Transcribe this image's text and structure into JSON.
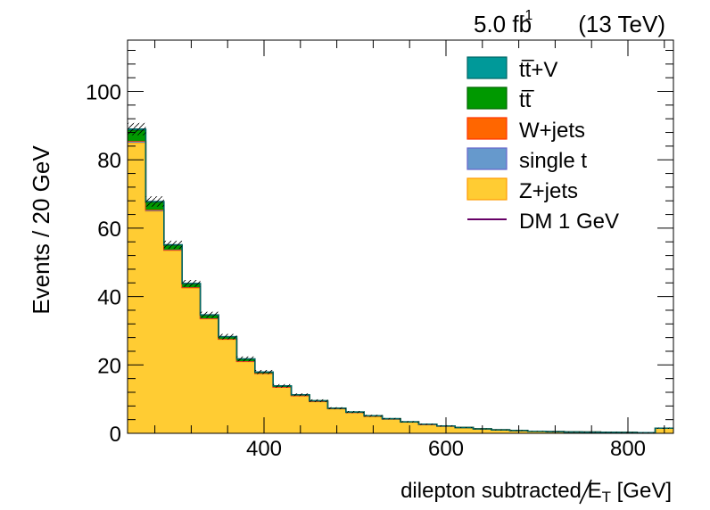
{
  "chart_data": {
    "type": "bar",
    "stacked": true,
    "histogram": true,
    "lumi_label": "5.0 fb",
    "lumi_exponent": "-1",
    "energy_label": "(13 TeV)",
    "ylabel": "Events / 20 GeV",
    "xlabel_prefix": "dilepton subtracted ",
    "xlabel_symbol": "E",
    "xlabel_subscript": "T",
    "xlabel_suffix": " [GeV]",
    "xlim": [
      250,
      850
    ],
    "ylim": [
      0,
      115
    ],
    "x_ticks": [
      400,
      600,
      800
    ],
    "y_ticks": [
      0,
      20,
      40,
      60,
      80,
      100
    ],
    "bin_edges": [
      250,
      270,
      290,
      310,
      330,
      350,
      370,
      390,
      410,
      430,
      450,
      470,
      490,
      510,
      530,
      550,
      570,
      590,
      610,
      630,
      650,
      670,
      690,
      710,
      730,
      750,
      770,
      790,
      810,
      830,
      850
    ],
    "series": [
      {
        "name": "Z+jets",
        "color": "#ffcc33",
        "edge": "#ff9900",
        "values": [
          85,
          65,
          53.5,
          42.5,
          33.5,
          27.5,
          21,
          17.5,
          13.5,
          11,
          9.3,
          7.2,
          6.1,
          5.0,
          4.2,
          3.3,
          2.6,
          2.1,
          1.7,
          1.3,
          1.0,
          0.8,
          0.6,
          0.5,
          0.4,
          0.35,
          0.3,
          0.25,
          0.2,
          1.5
        ]
      },
      {
        "name": "single t",
        "color": "#6699cc",
        "edge": "#6666cc",
        "values": [
          0.4,
          0.3,
          0.2,
          0.2,
          0.1,
          0.1,
          0.1,
          0.05,
          0.05,
          0.05,
          0.03,
          0.03,
          0.02,
          0.02,
          0.02,
          0.01,
          0.01,
          0.01,
          0.01,
          0,
          0,
          0,
          0,
          0,
          0,
          0,
          0,
          0,
          0,
          0
        ]
      },
      {
        "name": "W+jets",
        "color": "#ff6600",
        "edge": "#ff3300",
        "values": [
          0.1,
          0.1,
          0.05,
          0.05,
          0.05,
          0.02,
          0.02,
          0.02,
          0.01,
          0.01,
          0,
          0,
          0,
          0,
          0,
          0,
          0,
          0,
          0,
          0,
          0,
          0,
          0,
          0,
          0,
          0,
          0,
          0,
          0,
          0
        ]
      },
      {
        "name": "tt̅",
        "color": "#009900",
        "edge": "#006600",
        "values": [
          3.2,
          2.2,
          1.3,
          1.0,
          0.9,
          0.6,
          0.6,
          0.3,
          0.3,
          0.2,
          0.2,
          0.1,
          0.1,
          0.1,
          0.05,
          0.05,
          0.05,
          0.05,
          0,
          0,
          0,
          0,
          0,
          0,
          0,
          0,
          0,
          0,
          0,
          0
        ]
      },
      {
        "name": "tt̅+V",
        "color": "#009999",
        "edge": "#006666",
        "values": [
          0.3,
          0.2,
          0.1,
          0.1,
          0.1,
          0.05,
          0.05,
          0.05,
          0.02,
          0.02,
          0,
          0,
          0,
          0,
          0,
          0,
          0,
          0,
          0,
          0,
          0,
          0,
          0,
          0,
          0,
          0,
          0,
          0,
          0,
          0
        ]
      }
    ],
    "uncertainty": [
      1.8,
      1.5,
      1.2,
      1.0,
      0.9,
      0.8,
      0.7,
      0.6,
      0.5,
      0.4,
      0.4,
      0.3,
      0.3,
      0.3,
      0.2,
      0.2,
      0.2,
      0.2,
      0.1,
      0.1,
      0.1,
      0.1,
      0.1,
      0.1,
      0.1,
      0.1,
      0.1,
      0.1,
      0.1,
      0.2
    ],
    "signal": {
      "name": "DM 1 GeV",
      "color": "#660066"
    },
    "legend": {
      "position": "top-right"
    },
    "grid": false
  }
}
